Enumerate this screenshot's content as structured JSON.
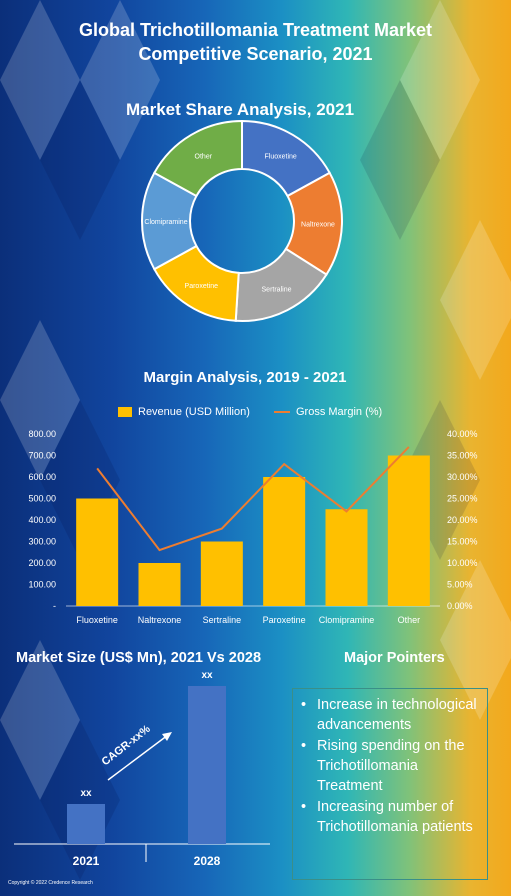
{
  "header": {
    "title_line1": "Global Trichotillomania Treatment Market",
    "title_line2": "Competitive Scenario, 2021"
  },
  "market_share": {
    "title": "Market Share Analysis, 2021"
  },
  "margin": {
    "title": "Margin Analysis, 2019 - 2021",
    "legend_revenue": "Revenue (USD Million)",
    "legend_margin": "Gross Margin (%)"
  },
  "market_size": {
    "title": "Market Size (US$ Mn), 2021 Vs 2028",
    "cagr_label": "CAGR-xx%"
  },
  "pointers": {
    "title": "Major Pointers",
    "items": [
      "Increase in technological advancements",
      "Rising spending on the Trichotillomania Treatment",
      "Increasing number of Trichotillomania patients"
    ]
  },
  "footer": {
    "copyright": "Copyright © 2022 Credence Research"
  },
  "colors": {
    "revenue": "#ffc000",
    "margin": "#ed7d31",
    "size_bar": "#4472c4"
  },
  "chart_data": [
    {
      "type": "pie",
      "title": "Market Share Analysis, 2021",
      "categories": [
        "Fluoxetine",
        "Naltrexone",
        "Sertraline",
        "Paroxetine",
        "Clomipramine",
        "Other"
      ],
      "values": [
        17,
        17,
        17,
        16,
        16,
        17
      ],
      "colors": [
        "#4472c4",
        "#ed7d31",
        "#a5a5a5",
        "#ffc000",
        "#5b9bd5",
        "#70ad47"
      ]
    },
    {
      "type": "bar",
      "title": "Margin Analysis, 2019 - 2021",
      "categories": [
        "Fluoxetine",
        "Naltrexone",
        "Sertraline",
        "Paroxetine",
        "Clomipramine",
        "Other"
      ],
      "series": [
        {
          "name": "Revenue (USD Million)",
          "type": "bar",
          "values": [
            500,
            200,
            300,
            600,
            450,
            700
          ]
        },
        {
          "name": "Gross Margin (%)",
          "type": "line",
          "values": [
            0.32,
            0.13,
            0.18,
            0.33,
            0.22,
            0.37
          ]
        }
      ],
      "ylim": [
        0,
        800
      ],
      "y_ticks": [
        "-",
        "100.00",
        "200.00",
        "300.00",
        "400.00",
        "500.00",
        "600.00",
        "700.00",
        "800.00"
      ],
      "y2lim": [
        0,
        0.4
      ],
      "y2_ticks": [
        "0.00%",
        "5.00%",
        "10.00%",
        "15.00%",
        "20.00%",
        "25.00%",
        "30.00%",
        "35.00%",
        "40.00%"
      ],
      "legend": "top"
    },
    {
      "type": "bar",
      "title": "Market Size (US$ Mn), 2021 Vs 2028",
      "categories": [
        "2021",
        "2028"
      ],
      "values": [
        40,
        158
      ],
      "data_labels": [
        "xx",
        "xx"
      ]
    }
  ]
}
